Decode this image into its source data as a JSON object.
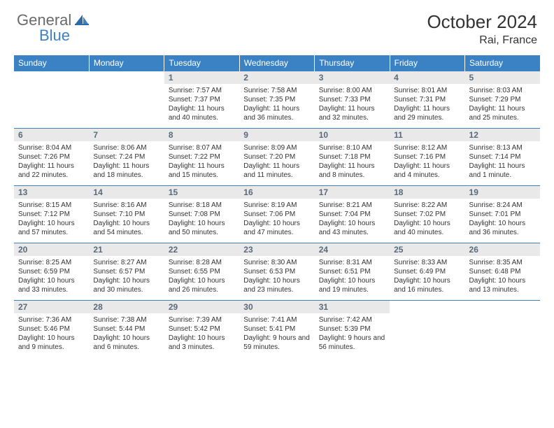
{
  "brand": {
    "general": "General",
    "blue": "Blue"
  },
  "title": "October 2024",
  "location": "Rai, France",
  "colors": {
    "header_bg": "#3b82c4",
    "daynum_bg": "#e9e9e9",
    "daynum_color": "#5a6a7a",
    "border": "#3b82c4",
    "text": "#333333"
  },
  "weekdays": [
    "Sunday",
    "Monday",
    "Tuesday",
    "Wednesday",
    "Thursday",
    "Friday",
    "Saturday"
  ],
  "weeks": [
    [
      {
        "n": "",
        "sr": "",
        "ss": "",
        "dl": ""
      },
      {
        "n": "",
        "sr": "",
        "ss": "",
        "dl": ""
      },
      {
        "n": "1",
        "sr": "Sunrise: 7:57 AM",
        "ss": "Sunset: 7:37 PM",
        "dl": "Daylight: 11 hours and 40 minutes."
      },
      {
        "n": "2",
        "sr": "Sunrise: 7:58 AM",
        "ss": "Sunset: 7:35 PM",
        "dl": "Daylight: 11 hours and 36 minutes."
      },
      {
        "n": "3",
        "sr": "Sunrise: 8:00 AM",
        "ss": "Sunset: 7:33 PM",
        "dl": "Daylight: 11 hours and 32 minutes."
      },
      {
        "n": "4",
        "sr": "Sunrise: 8:01 AM",
        "ss": "Sunset: 7:31 PM",
        "dl": "Daylight: 11 hours and 29 minutes."
      },
      {
        "n": "5",
        "sr": "Sunrise: 8:03 AM",
        "ss": "Sunset: 7:29 PM",
        "dl": "Daylight: 11 hours and 25 minutes."
      }
    ],
    [
      {
        "n": "6",
        "sr": "Sunrise: 8:04 AM",
        "ss": "Sunset: 7:26 PM",
        "dl": "Daylight: 11 hours and 22 minutes."
      },
      {
        "n": "7",
        "sr": "Sunrise: 8:06 AM",
        "ss": "Sunset: 7:24 PM",
        "dl": "Daylight: 11 hours and 18 minutes."
      },
      {
        "n": "8",
        "sr": "Sunrise: 8:07 AM",
        "ss": "Sunset: 7:22 PM",
        "dl": "Daylight: 11 hours and 15 minutes."
      },
      {
        "n": "9",
        "sr": "Sunrise: 8:09 AM",
        "ss": "Sunset: 7:20 PM",
        "dl": "Daylight: 11 hours and 11 minutes."
      },
      {
        "n": "10",
        "sr": "Sunrise: 8:10 AM",
        "ss": "Sunset: 7:18 PM",
        "dl": "Daylight: 11 hours and 8 minutes."
      },
      {
        "n": "11",
        "sr": "Sunrise: 8:12 AM",
        "ss": "Sunset: 7:16 PM",
        "dl": "Daylight: 11 hours and 4 minutes."
      },
      {
        "n": "12",
        "sr": "Sunrise: 8:13 AM",
        "ss": "Sunset: 7:14 PM",
        "dl": "Daylight: 11 hours and 1 minute."
      }
    ],
    [
      {
        "n": "13",
        "sr": "Sunrise: 8:15 AM",
        "ss": "Sunset: 7:12 PM",
        "dl": "Daylight: 10 hours and 57 minutes."
      },
      {
        "n": "14",
        "sr": "Sunrise: 8:16 AM",
        "ss": "Sunset: 7:10 PM",
        "dl": "Daylight: 10 hours and 54 minutes."
      },
      {
        "n": "15",
        "sr": "Sunrise: 8:18 AM",
        "ss": "Sunset: 7:08 PM",
        "dl": "Daylight: 10 hours and 50 minutes."
      },
      {
        "n": "16",
        "sr": "Sunrise: 8:19 AM",
        "ss": "Sunset: 7:06 PM",
        "dl": "Daylight: 10 hours and 47 minutes."
      },
      {
        "n": "17",
        "sr": "Sunrise: 8:21 AM",
        "ss": "Sunset: 7:04 PM",
        "dl": "Daylight: 10 hours and 43 minutes."
      },
      {
        "n": "18",
        "sr": "Sunrise: 8:22 AM",
        "ss": "Sunset: 7:02 PM",
        "dl": "Daylight: 10 hours and 40 minutes."
      },
      {
        "n": "19",
        "sr": "Sunrise: 8:24 AM",
        "ss": "Sunset: 7:01 PM",
        "dl": "Daylight: 10 hours and 36 minutes."
      }
    ],
    [
      {
        "n": "20",
        "sr": "Sunrise: 8:25 AM",
        "ss": "Sunset: 6:59 PM",
        "dl": "Daylight: 10 hours and 33 minutes."
      },
      {
        "n": "21",
        "sr": "Sunrise: 8:27 AM",
        "ss": "Sunset: 6:57 PM",
        "dl": "Daylight: 10 hours and 30 minutes."
      },
      {
        "n": "22",
        "sr": "Sunrise: 8:28 AM",
        "ss": "Sunset: 6:55 PM",
        "dl": "Daylight: 10 hours and 26 minutes."
      },
      {
        "n": "23",
        "sr": "Sunrise: 8:30 AM",
        "ss": "Sunset: 6:53 PM",
        "dl": "Daylight: 10 hours and 23 minutes."
      },
      {
        "n": "24",
        "sr": "Sunrise: 8:31 AM",
        "ss": "Sunset: 6:51 PM",
        "dl": "Daylight: 10 hours and 19 minutes."
      },
      {
        "n": "25",
        "sr": "Sunrise: 8:33 AM",
        "ss": "Sunset: 6:49 PM",
        "dl": "Daylight: 10 hours and 16 minutes."
      },
      {
        "n": "26",
        "sr": "Sunrise: 8:35 AM",
        "ss": "Sunset: 6:48 PM",
        "dl": "Daylight: 10 hours and 13 minutes."
      }
    ],
    [
      {
        "n": "27",
        "sr": "Sunrise: 7:36 AM",
        "ss": "Sunset: 5:46 PM",
        "dl": "Daylight: 10 hours and 9 minutes."
      },
      {
        "n": "28",
        "sr": "Sunrise: 7:38 AM",
        "ss": "Sunset: 5:44 PM",
        "dl": "Daylight: 10 hours and 6 minutes."
      },
      {
        "n": "29",
        "sr": "Sunrise: 7:39 AM",
        "ss": "Sunset: 5:42 PM",
        "dl": "Daylight: 10 hours and 3 minutes."
      },
      {
        "n": "30",
        "sr": "Sunrise: 7:41 AM",
        "ss": "Sunset: 5:41 PM",
        "dl": "Daylight: 9 hours and 59 minutes."
      },
      {
        "n": "31",
        "sr": "Sunrise: 7:42 AM",
        "ss": "Sunset: 5:39 PM",
        "dl": "Daylight: 9 hours and 56 minutes."
      },
      {
        "n": "",
        "sr": "",
        "ss": "",
        "dl": ""
      },
      {
        "n": "",
        "sr": "",
        "ss": "",
        "dl": ""
      }
    ]
  ]
}
